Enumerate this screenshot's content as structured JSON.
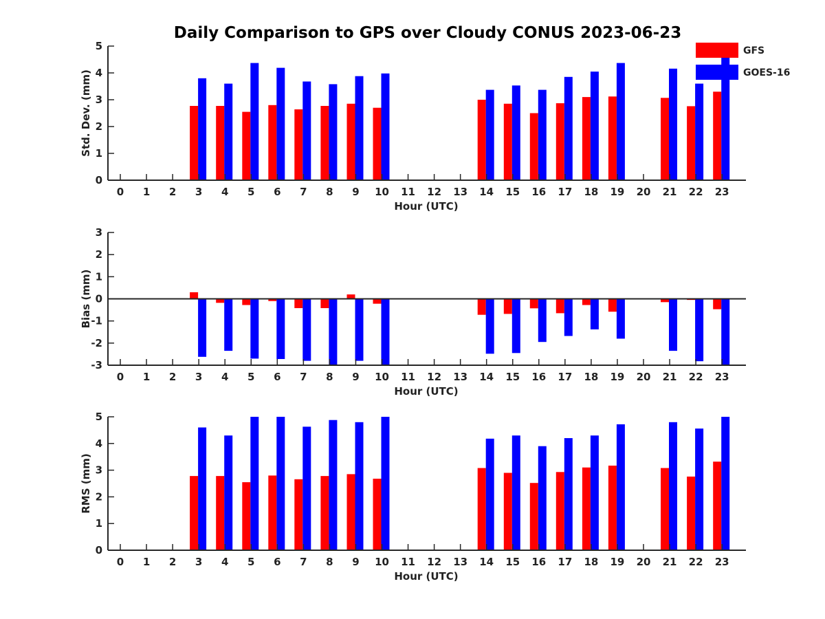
{
  "title": "Daily Comparison to GPS over Cloudy CONUS 2023-06-23",
  "legend": [
    {
      "name": "GFS",
      "color": "#ff0000"
    },
    {
      "name": "GOES-16",
      "color": "#0000ff"
    }
  ],
  "chart_data": [
    {
      "type": "bar",
      "ylabel": "Std. Dev. (mm)",
      "xlabel": "Hour (UTC)",
      "ylim": [
        0,
        5
      ],
      "yticks": [
        0,
        1,
        2,
        3,
        4,
        5
      ],
      "x": [
        0,
        1,
        2,
        3,
        4,
        5,
        6,
        7,
        8,
        9,
        10,
        11,
        12,
        13,
        14,
        15,
        16,
        17,
        18,
        19,
        20,
        21,
        22,
        23
      ],
      "series": [
        {
          "name": "GFS",
          "color": "#ff0000",
          "values": [
            null,
            null,
            null,
            2.77,
            2.77,
            2.55,
            2.8,
            2.64,
            2.77,
            2.85,
            2.7,
            null,
            null,
            null,
            3.0,
            2.85,
            2.5,
            2.87,
            3.1,
            3.12,
            null,
            3.07,
            2.76,
            3.3
          ]
        },
        {
          "name": "GOES-16",
          "color": "#0000ff",
          "values": [
            null,
            null,
            null,
            3.8,
            3.6,
            4.37,
            4.19,
            3.68,
            3.58,
            3.88,
            3.98,
            null,
            null,
            null,
            3.37,
            3.53,
            3.37,
            3.85,
            4.05,
            4.37,
            null,
            4.16,
            3.6,
            4.6
          ]
        }
      ]
    },
    {
      "type": "bar",
      "ylabel": "Bias (mm)",
      "xlabel": "Hour (UTC)",
      "ylim": [
        -3,
        3
      ],
      "yticks": [
        -3,
        -2,
        -1,
        0,
        1,
        2,
        3
      ],
      "zero_line": true,
      "x": [
        0,
        1,
        2,
        3,
        4,
        5,
        6,
        7,
        8,
        9,
        10,
        11,
        12,
        13,
        14,
        15,
        16,
        17,
        18,
        19,
        20,
        21,
        22,
        23
      ],
      "series": [
        {
          "name": "GFS",
          "color": "#ff0000",
          "values": [
            null,
            null,
            null,
            0.3,
            -0.18,
            -0.28,
            -0.1,
            -0.42,
            -0.42,
            0.2,
            -0.22,
            null,
            null,
            null,
            -0.72,
            -0.68,
            -0.43,
            -0.65,
            -0.28,
            -0.58,
            null,
            -0.15,
            -0.05,
            -0.47
          ]
        },
        {
          "name": "GOES-16",
          "color": "#0000ff",
          "values": [
            null,
            null,
            null,
            -2.62,
            -2.35,
            -2.7,
            -2.72,
            -2.8,
            -3.0,
            -2.8,
            -3.0,
            null,
            null,
            null,
            -2.48,
            -2.45,
            -1.95,
            -1.68,
            -1.38,
            -1.8,
            null,
            -2.35,
            -2.82,
            -3.0
          ]
        }
      ]
    },
    {
      "type": "bar",
      "ylabel": "RMS (mm)",
      "xlabel": "Hour (UTC)",
      "ylim": [
        0,
        5
      ],
      "yticks": [
        0,
        1,
        2,
        3,
        4,
        5
      ],
      "x": [
        0,
        1,
        2,
        3,
        4,
        5,
        6,
        7,
        8,
        9,
        10,
        11,
        12,
        13,
        14,
        15,
        16,
        17,
        18,
        19,
        20,
        21,
        22,
        23
      ],
      "series": [
        {
          "name": "GFS",
          "color": "#ff0000",
          "values": [
            null,
            null,
            null,
            2.78,
            2.78,
            2.55,
            2.8,
            2.66,
            2.78,
            2.85,
            2.68,
            null,
            null,
            null,
            3.08,
            2.9,
            2.52,
            2.93,
            3.1,
            3.17,
            null,
            3.08,
            2.76,
            3.32
          ]
        },
        {
          "name": "GOES-16",
          "color": "#0000ff",
          "values": [
            null,
            null,
            null,
            4.6,
            4.3,
            5.0,
            5.0,
            4.63,
            4.88,
            4.8,
            5.0,
            null,
            null,
            null,
            4.18,
            4.3,
            3.9,
            4.2,
            4.3,
            4.72,
            null,
            4.8,
            4.56,
            5.0
          ]
        }
      ]
    }
  ]
}
